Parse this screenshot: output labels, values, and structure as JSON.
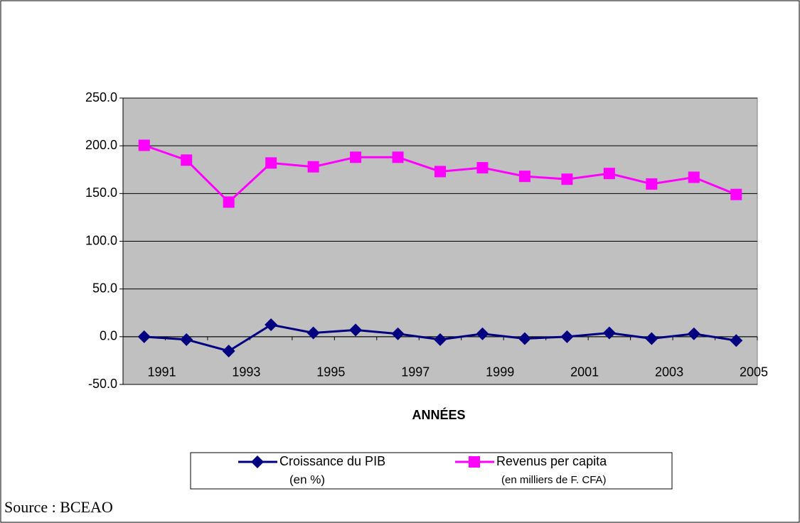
{
  "chart_data": {
    "type": "line",
    "x_label": "ANNÉES",
    "source": "Source : BCEAO",
    "categories": [
      "1991",
      null,
      "1993",
      null,
      "1995",
      null,
      "1997",
      null,
      "1999",
      null,
      "2001",
      null,
      "2003",
      null,
      "2005"
    ],
    "series": [
      {
        "name": "Croissance du PIB",
        "name_note": "(en %)",
        "color": "#000080",
        "marker": "diamond",
        "values": [
          0,
          -3,
          -15,
          12.5,
          4,
          7,
          3,
          -3,
          3,
          -2,
          0,
          4,
          -2,
          3,
          -4
        ]
      },
      {
        "name": "Revenus per capita",
        "name_note": "(en milliers de F. CFA)",
        "color": "#ff00ff",
        "marker": "square",
        "values": [
          200.5,
          185,
          141,
          182,
          178,
          188,
          188,
          173,
          177,
          168,
          165,
          171,
          160,
          167,
          149
        ]
      }
    ],
    "ylim": [
      -50,
      250
    ],
    "yticks": [
      {
        "value": -50,
        "label": "-50.0"
      },
      {
        "value": 0,
        "label": "0.0"
      },
      {
        "value": 50,
        "label": "50.0"
      },
      {
        "value": 100,
        "label": "100.0"
      },
      {
        "value": 150,
        "label": "150.0"
      },
      {
        "value": 200,
        "label": "200.0"
      },
      {
        "value": 250,
        "label": "250.0"
      }
    ],
    "grid": true,
    "plot_background": "#c0c0c0"
  }
}
